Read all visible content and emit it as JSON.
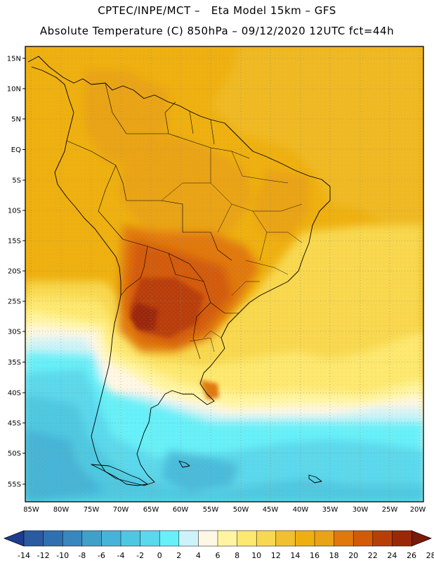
{
  "header": {
    "line1": "CPTEC/INPE/MCT –   Eta Model 15km – GFS",
    "line2": "Absolute Temperature (C) 850hPa – 09/12/2020 12UTC fct=44h"
  },
  "axes": {
    "lat_labels": [
      "15N",
      "10N",
      "5N",
      "EQ",
      "5S",
      "10S",
      "15S",
      "20S",
      "25S",
      "30S",
      "35S",
      "40S",
      "45S",
      "50S",
      "55S"
    ],
    "lat_values": [
      15,
      10,
      5,
      0,
      -5,
      -10,
      -15,
      -20,
      -25,
      -30,
      -35,
      -40,
      -45,
      -50,
      -55
    ],
    "lon_labels": [
      "85W",
      "80W",
      "75W",
      "70W",
      "65W",
      "60W",
      "55W",
      "50W",
      "45W",
      "40W",
      "35W",
      "30W",
      "25W",
      "20W"
    ],
    "lon_values": [
      -85,
      -80,
      -75,
      -70,
      -65,
      -60,
      -55,
      -50,
      -45,
      -40,
      -35,
      -30,
      -25,
      -20
    ],
    "lat_range": [
      -58,
      16.5
    ],
    "lon_range": [
      -86,
      -19.5
    ]
  },
  "colorbar": {
    "labels": [
      "-14",
      "-12",
      "-10",
      "-8",
      "-6",
      "-4",
      "-2",
      "0",
      "2",
      "4",
      "6",
      "8",
      "10",
      "12",
      "14",
      "16",
      "18",
      "20",
      "22",
      "24",
      "26",
      "28"
    ],
    "colors": [
      "#1e3c8c",
      "#2a5ba0",
      "#3070b0",
      "#3a86be",
      "#40a0c8",
      "#45b4d8",
      "#4ec8e2",
      "#5ad8ee",
      "#66f0fa",
      "#cdf3fa",
      "#fff7e6",
      "#fff5a0",
      "#fde870",
      "#f8d850",
      "#f0c030",
      "#eeb010",
      "#e9a316",
      "#e0780c",
      "#d25a08",
      "#b83e08",
      "#9a2808",
      "#7a1a0a"
    ]
  }
}
